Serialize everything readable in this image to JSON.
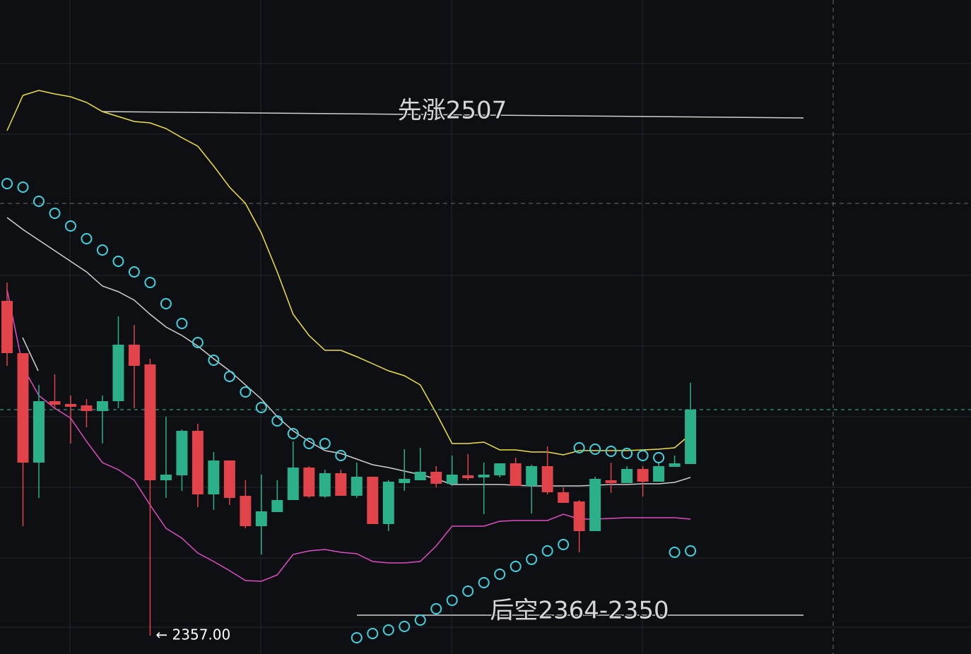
{
  "chart_data": {
    "type": "candlestick",
    "ylim": [
      2351.8,
      2537
    ],
    "up_color": "#2bb08a",
    "down_color": "#e0434a",
    "open": [
      2451.8,
      2437,
      2406,
      2423.4,
      2422.6,
      2422.2,
      2420.6,
      2423.4,
      2439.4,
      2433.8,
      2401,
      2402.4,
      2415,
      2397,
      2406.6,
      2396.6,
      2388,
      2392,
      2395.4,
      2404.6,
      2396.4,
      2403,
      2396.6,
      2402,
      2388.6,
      2400.2,
      2401,
      2403.4,
      2400,
      2402.4,
      2401.8,
      2402.4,
      2405.8,
      2399.4,
      2405,
      2397.6,
      2395,
      2386.6,
      2401,
      2400.2,
      2404.2,
      2400.6,
      2404.8,
      2405.6
    ],
    "high": [
      2457,
      2437,
      2428,
      2431,
      2425,
      2424,
      2425,
      2447.4,
      2445,
      2435.4,
      2419,
      2415.4,
      2417,
      2409,
      2406.6,
      2401,
      2402.6,
      2401,
      2412,
      2405,
      2404,
      2404,
      2406,
      2402,
      2401,
      2409.8,
      2410.2,
      2405,
      2408,
      2408.4,
      2406,
      2405.8,
      2407.4,
      2405.4,
      2410.6,
      2399,
      2395.4,
      2402,
      2406,
      2405,
      2405,
      2405.8,
      2408,
      2428.6
    ],
    "low": [
      2433.4,
      2388,
      2396,
      2421,
      2411.4,
      2416,
      2411.4,
      2421.4,
      2421.4,
      2357,
      2396,
      2398,
      2393.4,
      2392.6,
      2394,
      2387.4,
      2380,
      2392,
      2395.4,
      2396,
      2396,
      2396.6,
      2396,
      2388.6,
      2386.6,
      2398,
      2401,
      2399,
      2399.4,
      2401,
      2391.4,
      2401.8,
      2399.4,
      2391.6,
      2397,
      2394.6,
      2380.6,
      2386.6,
      2397.4,
      2400.2,
      2396.4,
      2400.6,
      2404.8,
      2405.6
    ],
    "close": [
      2437,
      2406,
      2423.4,
      2422.4,
      2421.8,
      2420.6,
      2423.4,
      2439.4,
      2433.4,
      2401,
      2402.6,
      2415,
      2397,
      2406.6,
      2396,
      2388,
      2392.2,
      2395.4,
      2404.6,
      2396.4,
      2403,
      2396.6,
      2402,
      2388.6,
      2400.6,
      2401.4,
      2403.4,
      2400,
      2402.6,
      2401.6,
      2402.6,
      2405.8,
      2399.4,
      2405,
      2397.6,
      2394.6,
      2386.6,
      2401.4,
      2400.2,
      2404.2,
      2400.6,
      2405,
      2405.8,
      2421
    ],
    "lines": [
      {
        "color": "#f0e03a",
        "values": [
          2500,
          2510,
          2511.4,
          2510.4,
          2509.6,
          2508,
          2505.4,
          2504,
          2502.6,
          2502.2,
          2500.6,
          2498,
          2495.6,
          2490,
          2484,
          2479.4,
          2471,
          2460,
          2448,
          2442,
          2437.8,
          2437.8,
          2436,
          2434,
          2432,
          2430.6,
          2428,
          2420,
          2411.4,
          2411.4,
          2411.8,
          2409.6,
          2409.6,
          2409,
          2409,
          2408.2,
          2409.4,
          2409.4,
          2409.4,
          2409.4,
          2409.6,
          2409.8,
          2410.2,
          2414
        ]
      },
      {
        "color": "#cfcfcf",
        "values": [
          2475.4,
          2472,
          2469,
          2466,
          2463,
          2460,
          2456,
          2454.4,
          2452,
          2448,
          2444.4,
          2442,
          2439,
          2435.4,
          2432,
          2428,
          2424,
          2419,
          2415,
          2412,
          2409.4,
          2408.6,
          2407,
          2405.4,
          2404.6,
          2403.6,
          2402.6,
          2401.4,
          2399.8,
          2399.8,
          2399.8,
          2399.8,
          2399.6,
          2399.4,
          2399.4,
          2399.4,
          2399.4,
          2399.6,
          2399.8,
          2399.8,
          2400,
          2400,
          2400.4,
          2401.8
        ]
      },
      {
        "color": "#e04cc4",
        "values": [
          2455,
          2433,
          2425,
          2421.4,
          2418.6,
          2412,
          2406,
          2404,
          2401,
          2394,
          2387.4,
          2384.6,
          2380.4,
          2378,
          2375.4,
          2372.6,
          2372.4,
          2374.2,
          2380,
          2381,
          2381.4,
          2380.6,
          2380.2,
          2378,
          2377.6,
          2377.6,
          2378,
          2382.4,
          2388,
          2388,
          2388,
          2389.4,
          2389.6,
          2389.6,
          2389.6,
          2391.4,
          2390,
          2390,
          2390.2,
          2390.4,
          2390.4,
          2390.4,
          2390.4,
          2390
        ]
      }
    ],
    "sar": {
      "color": "#3fd3df",
      "values": [
        2485,
        2484,
        2480,
        2476.6,
        2473,
        2469.4,
        2466.2,
        2463,
        2460,
        2457,
        2451,
        2445.4,
        2440,
        2435,
        2430.4,
        2426,
        2421.6,
        2417.8,
        2414.2,
        2411.4,
        2411.4,
        2408,
        2356.4,
        2357.6,
        2358.6,
        2359.6,
        2361.4,
        2364.6,
        2367,
        2369.6,
        2372,
        2374.4,
        2376.6,
        2378.6,
        2381,
        2382.8,
        2410.2,
        2409.8,
        2409.2,
        2408.6,
        2408,
        2407.4,
        2380.6,
        2381
      ]
    },
    "annotations": [
      "先涨2507",
      "后空2364-2350"
    ],
    "low_label": "← 2357.00"
  }
}
